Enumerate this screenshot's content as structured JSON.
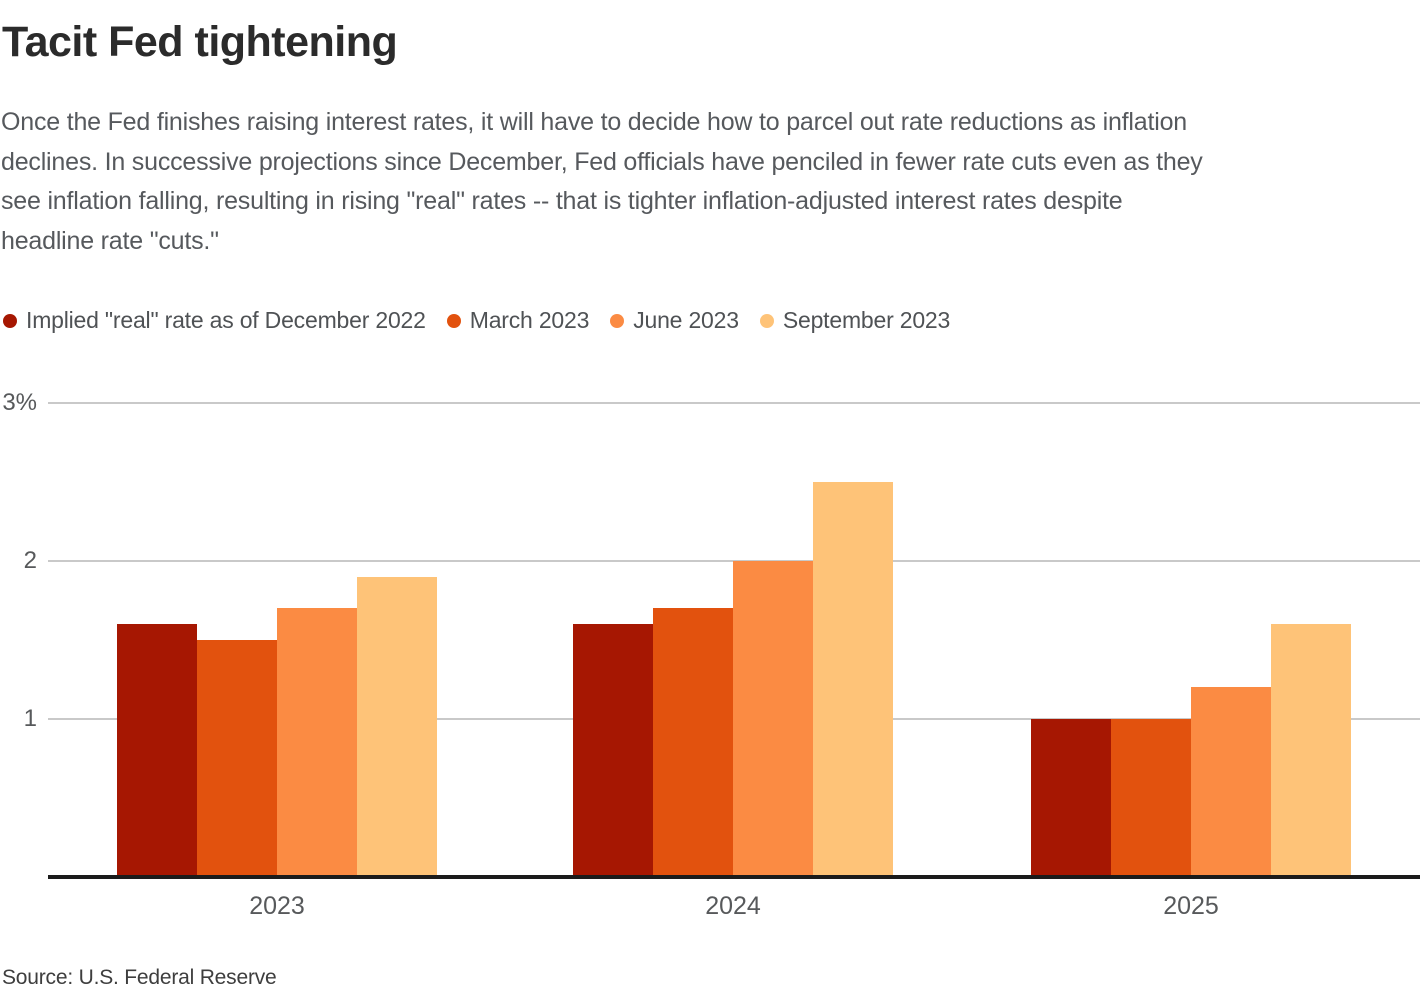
{
  "header": {
    "title": "Tacit Fed tightening",
    "description_lines": [
      "Once the Fed finishes raising interest rates, it will have to decide how to parcel out rate reductions as inflation",
      "declines. In successive projections since December, Fed officials have penciled in fewer rate cuts even as they",
      "see inflation falling, resulting in rising \"real\" rates -- that is tighter inflation-adjusted interest rates despite",
      "headline rate \"cuts.\""
    ]
  },
  "chart_data": {
    "type": "bar",
    "title": "Tacit Fed tightening",
    "categories": [
      "2023",
      "2024",
      "2025"
    ],
    "series": [
      {
        "name": "Implied \"real\" rate as of December 2022",
        "color": "#a61702",
        "values": [
          1.6,
          1.6,
          1.0
        ]
      },
      {
        "name": "March 2023",
        "color": "#e2520e",
        "values": [
          1.5,
          1.7,
          1.0
        ]
      },
      {
        "name": "June 2023",
        "color": "#fb8b43",
        "values": [
          1.7,
          2.0,
          1.2
        ]
      },
      {
        "name": "September 2023",
        "color": "#fec378",
        "values": [
          1.9,
          2.5,
          1.6
        ]
      }
    ],
    "xlabel": "",
    "ylabel": "",
    "ylim": [
      0,
      3
    ],
    "yticks": [
      {
        "value": 3,
        "label": "3%"
      },
      {
        "value": 2,
        "label": "2"
      },
      {
        "value": 1,
        "label": "1"
      }
    ],
    "grid": "horizontal",
    "legend_position": "top",
    "unit_suffix": "%"
  },
  "colors": {
    "gridline": "#c9c9c9",
    "axis_baseline": "#1b1b1b",
    "title_text": "#2b2b2b",
    "body_text": "#56595d",
    "tick_text": "#57595b"
  },
  "source": {
    "label": "Source: U.S. Federal Reserve"
  }
}
